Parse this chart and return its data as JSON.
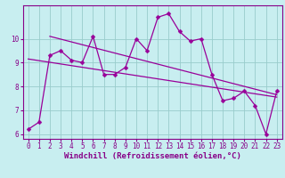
{
  "title": "",
  "xlabel": "Windchill (Refroidissement éolien,°C)",
  "ylabel": "",
  "bg_color": "#c8eef0",
  "line_color": "#990099",
  "grid_color": "#99cccc",
  "xlim": [
    -0.5,
    23.5
  ],
  "ylim": [
    5.8,
    11.4
  ],
  "yticks": [
    6,
    7,
    8,
    9,
    10
  ],
  "xticks": [
    0,
    1,
    2,
    3,
    4,
    5,
    6,
    7,
    8,
    9,
    10,
    11,
    12,
    13,
    14,
    15,
    16,
    17,
    18,
    19,
    20,
    21,
    22,
    23
  ],
  "data_x": [
    0,
    1,
    2,
    3,
    4,
    5,
    6,
    7,
    8,
    9,
    10,
    11,
    12,
    13,
    14,
    15,
    16,
    17,
    18,
    19,
    20,
    21,
    22,
    23
  ],
  "data_y": [
    6.2,
    6.5,
    9.3,
    9.5,
    9.1,
    9.0,
    10.1,
    8.5,
    8.5,
    8.8,
    10.0,
    9.5,
    10.9,
    11.05,
    10.3,
    9.9,
    10.0,
    8.5,
    7.4,
    7.5,
    7.8,
    7.2,
    6.0,
    7.8
  ],
  "trend1_x": [
    2,
    23
  ],
  "trend1_y": [
    10.1,
    7.65
  ],
  "trend2_x": [
    0,
    23
  ],
  "trend2_y": [
    9.15,
    7.55
  ],
  "marker": "D",
  "marker_size": 2.5,
  "line_width": 0.9,
  "tick_fontsize": 5.5,
  "xlabel_fontsize": 6.5,
  "tick_color": "#880088",
  "xlabel_color": "#880088",
  "ytick_labels": [
    "6",
    "7",
    "8",
    "9",
    "10"
  ],
  "spine_color": "#880088"
}
